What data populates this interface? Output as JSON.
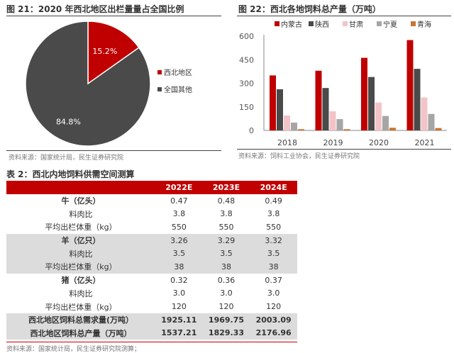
{
  "fig21": {
    "title": "图 21：2020 年西北地区出栏量量占全国比例",
    "source": "资料来源：国家统计局，民生证券研究院"
  },
  "fig22": {
    "title": "图 22：西北各地饲料总产量（万吨）",
    "source": "资料来源：饲料工业协会，民生证券研究院"
  },
  "table": {
    "title": "表 2：西北内地饲料供需空间测算",
    "headers": [
      "",
      "2022E",
      "2023E",
      "2024E"
    ],
    "rows": [
      [
        "牛（亿头）",
        "0.47",
        "0.48",
        "0.49"
      ],
      [
        "料肉比",
        "3.8",
        "3.8",
        "3.8"
      ],
      [
        "平均出栏体重（kg）",
        "550",
        "550",
        "550"
      ],
      [
        "羊（亿只）",
        "3.26",
        "3.29",
        "3.32"
      ],
      [
        "料肉比",
        "3.5",
        "3.5",
        "3.5"
      ],
      [
        "平均出栏体重（kg）",
        "38",
        "38",
        "38"
      ],
      [
        "猪（亿头）",
        "0.32",
        "0.36",
        "0.37"
      ],
      [
        "料肉比",
        "3.0",
        "3.0",
        "3.0"
      ],
      [
        "平均出栏体重（kg）",
        "120",
        "120",
        "120"
      ],
      [
        "西北地区饲料总需求量(万吨）",
        "1925.11",
        "1969.75",
        "2003.09"
      ],
      [
        "西北地区饲料总产量（万吨）",
        "1537.21",
        "1829.33",
        "2176.96"
      ]
    ],
    "source": "资料来源：国家统计局，民生证券研究院测算；"
  },
  "chart_data": [
    {
      "type": "pie",
      "title": "图 21：2020 年西北地区出栏量量占全国比例",
      "slices": [
        {
          "label": "西北地区",
          "value": 15.2,
          "text": "15.2%",
          "color": "#c00000"
        },
        {
          "label": "全国其他",
          "value": 84.8,
          "text": "84.8%",
          "color": "#4a4a4a"
        }
      ],
      "legend": "right"
    },
    {
      "type": "bar",
      "title": "图 22：西北各地饲料总产量（万吨）",
      "categories": [
        "2018",
        "2019",
        "2020",
        "2021"
      ],
      "ylim": [
        0,
        600
      ],
      "yticks": [
        "0",
        "150",
        "300",
        "450",
        "600"
      ],
      "legend": "top",
      "series": [
        {
          "name": "内蒙古",
          "color": "#c00000",
          "values": [
            350,
            380,
            462,
            575
          ]
        },
        {
          "name": "陕西",
          "color": "#4a4a4a",
          "values": [
            262,
            270,
            340,
            392
          ]
        },
        {
          "name": "甘肃",
          "color": "#f2c4c8",
          "values": [
            95,
            122,
            178,
            210
          ]
        },
        {
          "name": "宁夏",
          "color": "#a6a6a6",
          "values": [
            50,
            72,
            92,
            105
          ]
        },
        {
          "name": "青海",
          "color": "#c87533",
          "values": [
            8,
            8,
            17,
            15
          ]
        }
      ]
    }
  ]
}
